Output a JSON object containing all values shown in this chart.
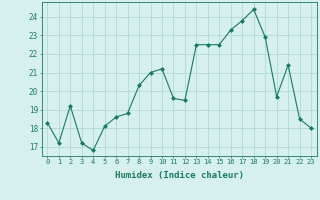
{
  "x": [
    0,
    1,
    2,
    3,
    4,
    5,
    6,
    7,
    8,
    9,
    10,
    11,
    12,
    13,
    14,
    15,
    16,
    17,
    18,
    19,
    20,
    21,
    22,
    23
  ],
  "y": [
    18.3,
    17.2,
    19.2,
    17.2,
    16.8,
    18.1,
    18.6,
    18.8,
    20.3,
    21.0,
    21.2,
    19.6,
    19.5,
    22.5,
    22.5,
    22.5,
    23.3,
    23.8,
    24.4,
    22.9,
    19.7,
    21.4,
    18.5,
    18.0
  ],
  "line_color": "#1a7a5e",
  "marker": "D",
  "marker_size": 2,
  "bg_color": "#d6f0ee",
  "grid_color": "#b0d8d4",
  "xlabel": "Humidex (Indice chaleur)",
  "ylim": [
    16.5,
    24.8
  ],
  "xlim": [
    -0.5,
    23.5
  ],
  "yticks": [
    17,
    18,
    19,
    20,
    21,
    22,
    23,
    24
  ],
  "xticks": [
    0,
    1,
    2,
    3,
    4,
    5,
    6,
    7,
    8,
    9,
    10,
    11,
    12,
    13,
    14,
    15,
    16,
    17,
    18,
    19,
    20,
    21,
    22,
    23
  ],
  "tick_color": "#1a7a5e",
  "label_color": "#1a7a5e",
  "axis_color": "#1a7a5e"
}
